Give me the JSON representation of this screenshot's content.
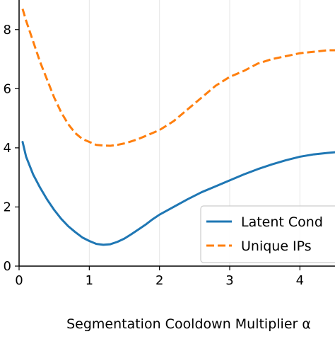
{
  "chart_data": {
    "type": "line",
    "title": "",
    "xlabel": "Segmentation Cooldown Multiplier α",
    "ylabel": "",
    "xlim": [
      0,
      4.5
    ],
    "ylim": [
      0,
      0.9
    ],
    "x_ticks": [
      0,
      1,
      2,
      3,
      4
    ],
    "x_tick_labels": [
      "0",
      "1",
      "2",
      "3",
      "4"
    ],
    "y_ticks": [
      0.0,
      0.2,
      0.4,
      0.6,
      0.8
    ],
    "y_tick_labels": [
      "0",
      "2",
      "4",
      "6",
      "8"
    ],
    "grid": "x-major",
    "legend_position": "lower-right",
    "series": [
      {
        "name": "Latent Cond",
        "style": "solid",
        "color": "#1f77b4",
        "x": [
          0.05,
          0.1,
          0.2,
          0.3,
          0.4,
          0.5,
          0.6,
          0.7,
          0.8,
          0.9,
          1.0,
          1.1,
          1.2,
          1.3,
          1.4,
          1.5,
          1.6,
          1.7,
          1.8,
          1.9,
          2.0,
          2.2,
          2.4,
          2.6,
          2.8,
          3.0,
          3.2,
          3.4,
          3.6,
          3.8,
          4.0,
          4.2,
          4.4,
          4.5
        ],
        "y": [
          0.42,
          0.37,
          0.31,
          0.265,
          0.225,
          0.19,
          0.16,
          0.135,
          0.115,
          0.097,
          0.085,
          0.075,
          0.072,
          0.074,
          0.082,
          0.093,
          0.108,
          0.124,
          0.14,
          0.158,
          0.174,
          0.2,
          0.226,
          0.25,
          0.27,
          0.29,
          0.31,
          0.328,
          0.344,
          0.358,
          0.37,
          0.378,
          0.383,
          0.385
        ]
      },
      {
        "name": "Unique IPs",
        "style": "dashed",
        "color": "#ff7f0e",
        "x": [
          0.05,
          0.1,
          0.2,
          0.3,
          0.4,
          0.5,
          0.6,
          0.7,
          0.8,
          0.9,
          1.0,
          1.1,
          1.2,
          1.3,
          1.4,
          1.5,
          1.6,
          1.7,
          1.8,
          1.9,
          2.0,
          2.2,
          2.4,
          2.6,
          2.8,
          3.0,
          3.2,
          3.4,
          3.6,
          3.8,
          4.0,
          4.2,
          4.4,
          4.5
        ],
        "y": [
          0.87,
          0.83,
          0.76,
          0.69,
          0.63,
          0.57,
          0.52,
          0.48,
          0.45,
          0.43,
          0.42,
          0.41,
          0.408,
          0.407,
          0.41,
          0.415,
          0.422,
          0.43,
          0.44,
          0.45,
          0.46,
          0.49,
          0.53,
          0.57,
          0.61,
          0.64,
          0.66,
          0.685,
          0.7,
          0.71,
          0.72,
          0.725,
          0.73,
          0.73
        ]
      }
    ]
  }
}
